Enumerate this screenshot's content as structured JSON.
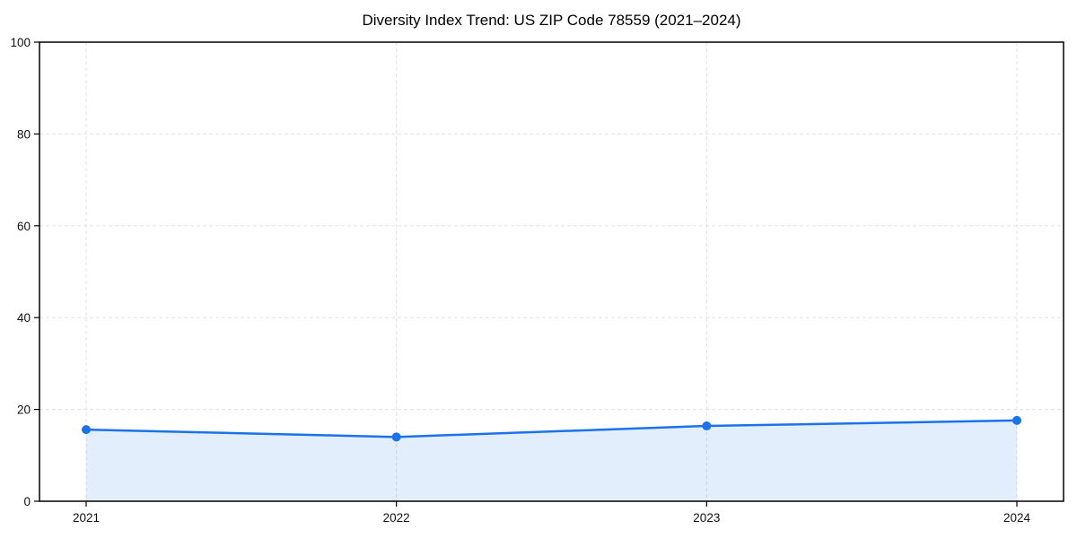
{
  "chart_data": {
    "type": "line",
    "title": "Diversity Index Trend: US ZIP Code 78559 (2021–2024)",
    "x": [
      "2021",
      "2022",
      "2023",
      "2024"
    ],
    "series": [
      {
        "name": "Diversity Index",
        "values": [
          15.6,
          14.0,
          16.4,
          17.6
        ],
        "marker": "circle",
        "fill_to_zero": true
      }
    ],
    "xlabel": "",
    "ylabel": "",
    "ylim": [
      0,
      100
    ],
    "yticks": [
      0,
      20,
      40,
      60,
      80,
      100
    ],
    "xticklabels": [
      "2021",
      "2022",
      "2023",
      "2024"
    ],
    "grid": true,
    "grid_style": "dashed",
    "legend": false,
    "colors": {
      "line": "#1a73e8",
      "marker": "#1a73e8",
      "area_fill": "#1a73e8",
      "area_fill_opacity": 0.12,
      "grid": "#e0e0e0",
      "spine": "#000000",
      "tick_text": "#111111",
      "background": "#ffffff"
    }
  }
}
